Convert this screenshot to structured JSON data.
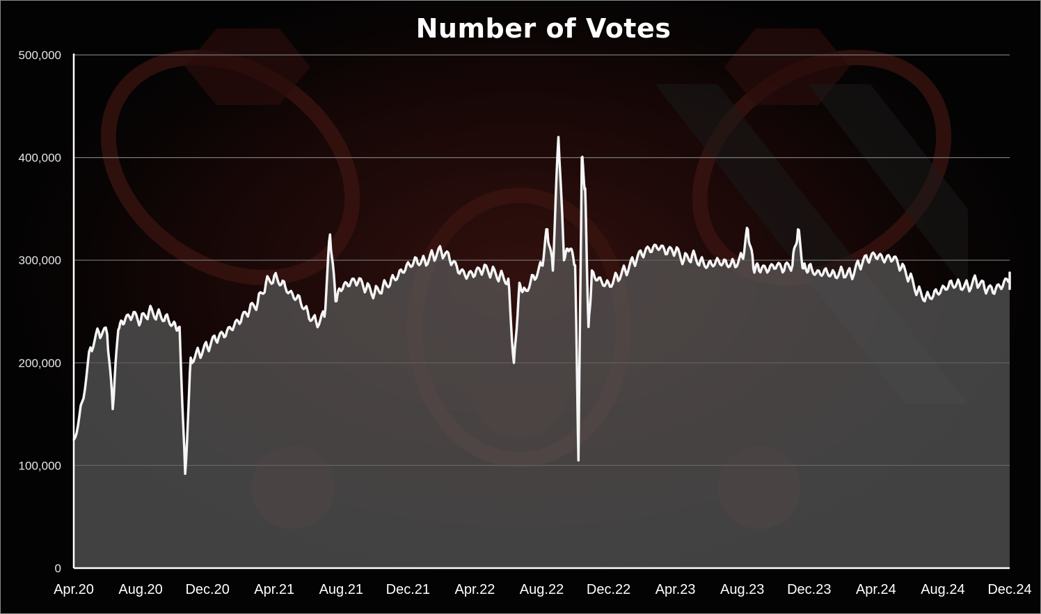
{
  "chart_data": {
    "type": "area",
    "title": "Number of Votes",
    "xlabel": "",
    "ylabel": "",
    "ylim": [
      0,
      500000
    ],
    "y_ticks": [
      0,
      100000,
      200000,
      300000,
      400000,
      500000
    ],
    "y_tick_labels": [
      "0",
      "100,000",
      "200,000",
      "300,000",
      "400,000",
      "500,000"
    ],
    "x_tick_labels": [
      "Apr.20",
      "Aug.20",
      "Dec.20",
      "Apr.21",
      "Aug.21",
      "Dec.21",
      "Apr.22",
      "Aug.22",
      "Dec.22",
      "Apr.23",
      "Aug.23",
      "Dec.23",
      "Apr.24",
      "Aug.24",
      "Dec.24"
    ],
    "x_range": [
      "Apr.20",
      "Dec.24"
    ],
    "grid": true,
    "legend": "none",
    "series": [
      {
        "color": "#f5f5f5",
        "points": [
          [
            "Apr.20",
            125000
          ],
          [
            "Apr.20",
            162000
          ],
          [
            "May.20",
            215000
          ],
          [
            "May.20",
            230000
          ],
          [
            "Jun.20",
            228000
          ],
          [
            "Jun.20",
            155000
          ],
          [
            "Jun.20",
            232000
          ],
          [
            "Jul.20",
            238000
          ],
          [
            "Jul.20",
            245000
          ],
          [
            "Aug.20",
            240000
          ],
          [
            "Aug.20",
            250000
          ],
          [
            "Sep.20",
            248000
          ],
          [
            "Sep.20",
            246000
          ],
          [
            "Oct.20",
            240000
          ],
          [
            "Oct.20",
            235000
          ],
          [
            "Oct.20",
            92000
          ],
          [
            "Nov.20",
            205000
          ],
          [
            "Nov.20",
            210000
          ],
          [
            "Dec.20",
            215000
          ],
          [
            "Dec.20",
            222000
          ],
          [
            "Jan.21",
            225000
          ],
          [
            "Jan.21",
            232000
          ],
          [
            "Feb.21",
            240000
          ],
          [
            "Feb.21",
            250000
          ],
          [
            "Mar.21",
            258000
          ],
          [
            "Mar.21",
            278000
          ],
          [
            "Apr.21",
            285000
          ],
          [
            "Apr.21",
            280000
          ],
          [
            "May.21",
            270000
          ],
          [
            "May.21",
            265000
          ],
          [
            "Jun.21",
            250000
          ],
          [
            "Jun.21",
            240000
          ],
          [
            "Jul.21",
            245000
          ],
          [
            "Jul.21",
            325000
          ],
          [
            "Jul.21",
            260000
          ],
          [
            "Aug.21",
            270000
          ],
          [
            "Aug.21",
            275000
          ],
          [
            "Sep.21",
            278000
          ],
          [
            "Sep.21",
            272000
          ],
          [
            "Oct.21",
            268000
          ],
          [
            "Oct.21",
            275000
          ],
          [
            "Nov.21",
            282000
          ],
          [
            "Nov.21",
            290000
          ],
          [
            "Dec.21",
            298000
          ],
          [
            "Dec.21",
            302000
          ],
          [
            "Jan.22",
            300000
          ],
          [
            "Jan.22",
            305000
          ],
          [
            "Feb.22",
            308000
          ],
          [
            "Feb.22",
            300000
          ],
          [
            "Mar.22",
            288000
          ],
          [
            "Mar.22",
            282000
          ],
          [
            "Apr.22",
            285000
          ],
          [
            "Apr.22",
            290000
          ],
          [
            "May.22",
            288000
          ],
          [
            "May.22",
            285000
          ],
          [
            "Jun.22",
            282000
          ],
          [
            "Jun.22",
            200000
          ],
          [
            "Jun.22",
            278000
          ],
          [
            "Jul.22",
            272000
          ],
          [
            "Jul.22",
            285000
          ],
          [
            "Aug.22",
            295000
          ],
          [
            "Aug.22",
            330000
          ],
          [
            "Aug.22",
            290000
          ],
          [
            "Sep.22",
            420000
          ],
          [
            "Sep.22",
            300000
          ],
          [
            "Sep.22",
            310000
          ],
          [
            "Oct.22",
            295000
          ],
          [
            "Oct.22",
            105000
          ],
          [
            "Oct.22",
            400000
          ],
          [
            "Oct.22",
            370000
          ],
          [
            "Oct.22",
            235000
          ],
          [
            "Nov.22",
            290000
          ],
          [
            "Nov.22",
            283000
          ],
          [
            "Dec.22",
            278000
          ],
          [
            "Dec.22",
            285000
          ],
          [
            "Jan.23",
            290000
          ],
          [
            "Jan.23",
            298000
          ],
          [
            "Feb.23",
            305000
          ],
          [
            "Feb.23",
            308000
          ],
          [
            "Mar.23",
            310000
          ],
          [
            "Mar.23",
            306000
          ],
          [
            "Apr.23",
            308000
          ],
          [
            "Apr.23",
            300000
          ],
          [
            "May.23",
            305000
          ],
          [
            "May.23",
            300000
          ],
          [
            "Jun.23",
            298000
          ],
          [
            "Jun.23",
            302000
          ],
          [
            "Jul.23",
            300000
          ],
          [
            "Jul.23",
            298000
          ],
          [
            "Aug.23",
            303000
          ],
          [
            "Aug.23",
            330000
          ],
          [
            "Aug.23",
            292000
          ],
          [
            "Sep.23",
            290000
          ],
          [
            "Sep.23",
            288000
          ],
          [
            "Oct.23",
            292000
          ],
          [
            "Oct.23",
            290000
          ],
          [
            "Nov.23",
            295000
          ],
          [
            "Nov.23",
            330000
          ],
          [
            "Nov.23",
            292000
          ],
          [
            "Dec.23",
            295000
          ],
          [
            "Dec.23",
            290000
          ],
          [
            "Jan.24",
            292000
          ],
          [
            "Jan.24",
            288000
          ],
          [
            "Feb.24",
            290000
          ],
          [
            "Feb.24",
            286000
          ],
          [
            "Mar.24",
            295000
          ],
          [
            "Mar.24",
            300000
          ],
          [
            "Apr.24",
            302000
          ],
          [
            "Apr.24",
            298000
          ],
          [
            "May.24",
            300000
          ],
          [
            "May.24",
            292000
          ],
          [
            "Jun.24",
            283000
          ],
          [
            "Jun.24",
            270000
          ],
          [
            "Jul.24",
            265000
          ],
          [
            "Jul.24",
            270000
          ],
          [
            "Aug.24",
            275000
          ],
          [
            "Aug.24",
            280000
          ],
          [
            "Sep.24",
            278000
          ],
          [
            "Sep.24",
            275000
          ],
          [
            "Oct.24",
            280000
          ],
          [
            "Oct.24",
            272000
          ],
          [
            "Nov.24",
            268000
          ],
          [
            "Nov.24",
            272000
          ],
          [
            "Dec.24",
            280000
          ],
          [
            "Dec.24",
            284000
          ],
          [
            "Dec.24",
            275000
          ]
        ]
      }
    ]
  }
}
